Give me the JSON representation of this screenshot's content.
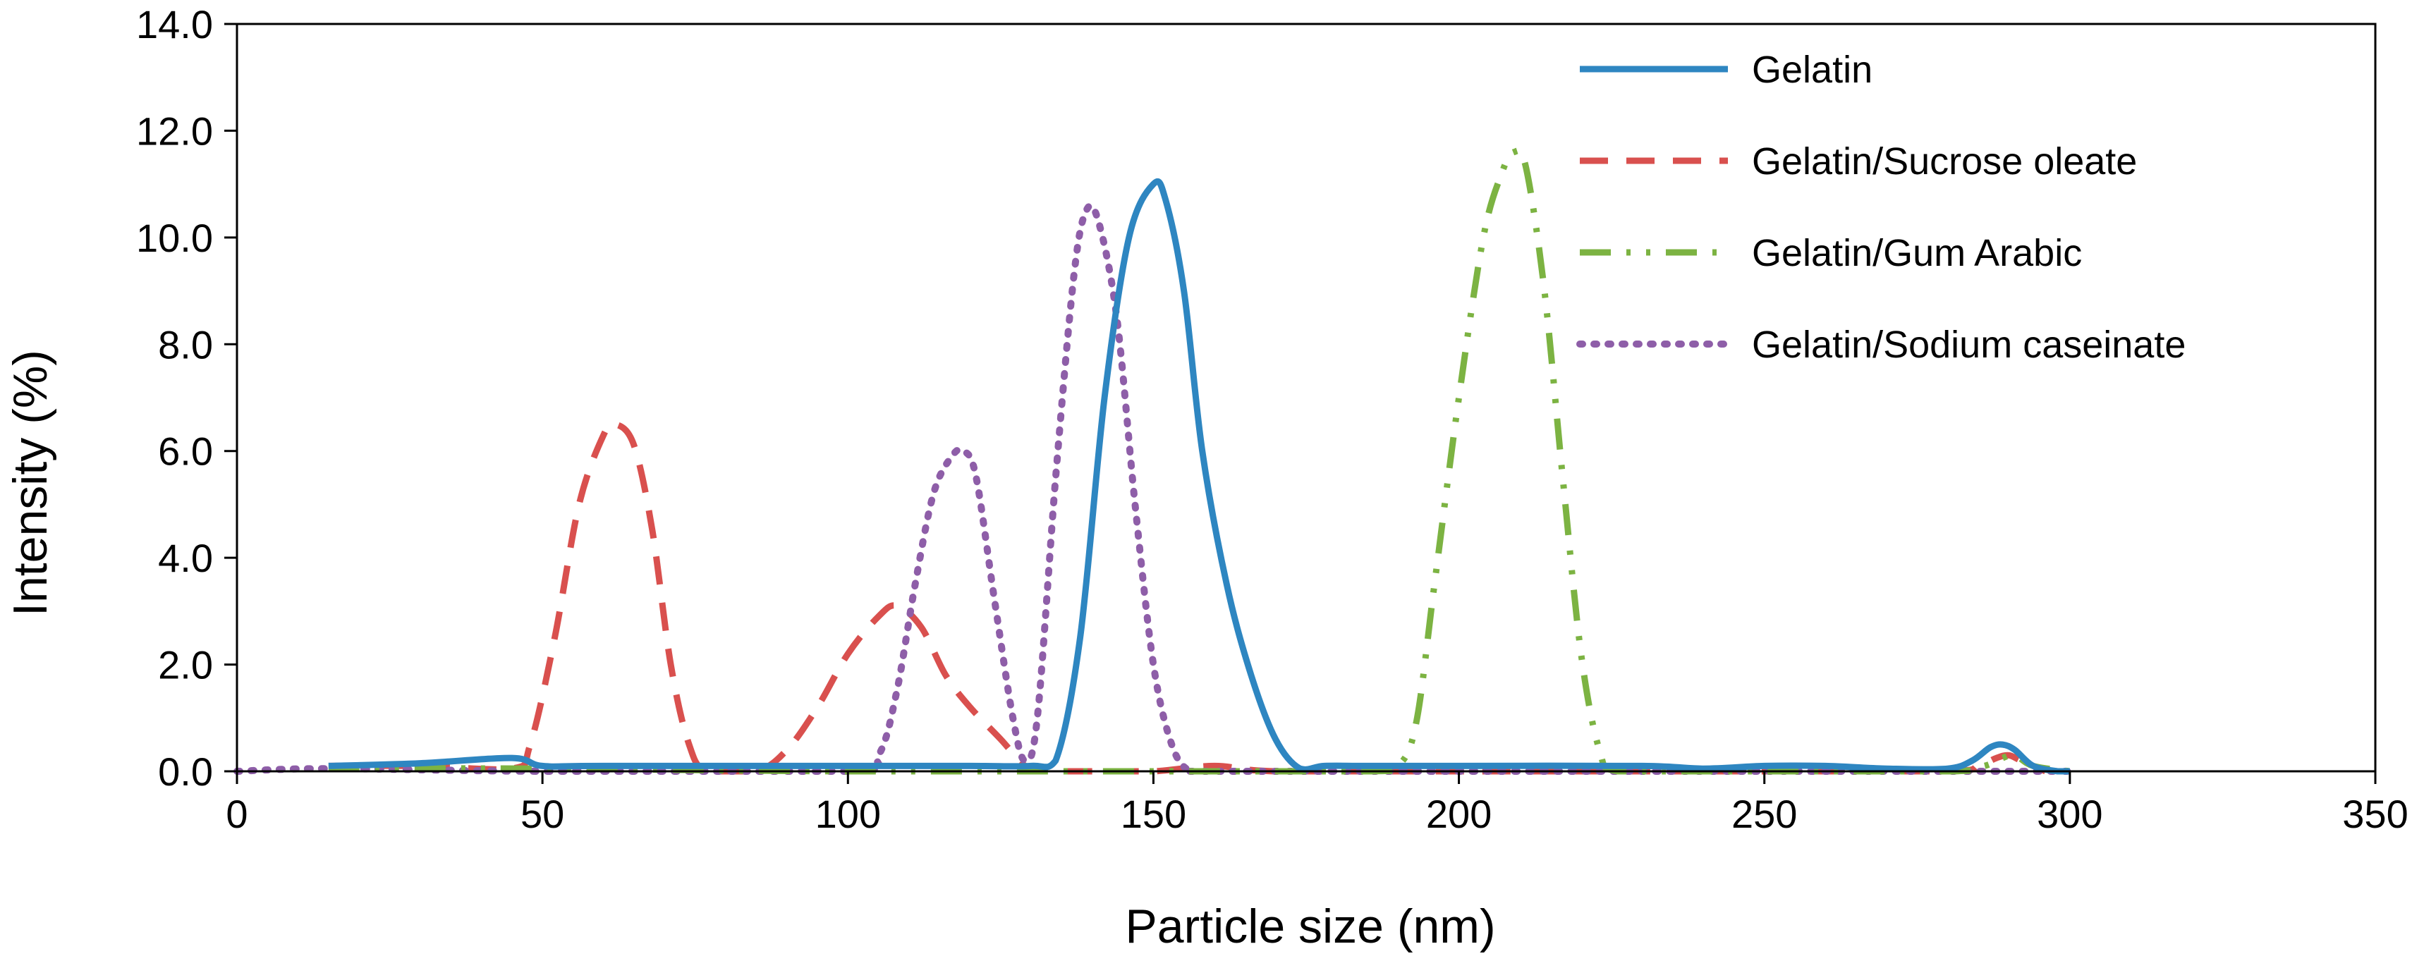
{
  "chart_data": {
    "type": "line",
    "title": "",
    "xlabel": "Particle size (nm)",
    "ylabel": "Intensity (%)",
    "xlim": [
      0,
      350
    ],
    "ylim": [
      0,
      14
    ],
    "x_ticks": [
      0,
      50,
      100,
      150,
      200,
      250,
      300,
      350
    ],
    "x_tick_labels": [
      "0",
      "50",
      "100",
      "150",
      "200",
      "250",
      "300",
      "350"
    ],
    "y_ticks": [
      0,
      2,
      4,
      6,
      8,
      10,
      12,
      14
    ],
    "y_tick_labels": [
      "0.0",
      "2.0",
      "4.0",
      "6.0",
      "8.0",
      "10.0",
      "12.0",
      "14.0"
    ],
    "grid": false,
    "legend_position": "top-right",
    "series": [
      {
        "name": "Gelatin",
        "color": "#2E86C1",
        "style": "solid",
        "x": [
          15,
          30,
          45,
          50,
          60,
          100,
          120,
          130,
          134,
          138,
          142,
          146,
          150,
          152,
          155,
          158,
          162,
          166,
          170,
          174,
          178,
          185,
          200,
          230,
          240,
          250,
          260,
          270,
          280,
          284,
          287,
          289,
          291,
          294,
          298,
          300
        ],
        "y": [
          0.1,
          0.15,
          0.25,
          0.1,
          0.1,
          0.1,
          0.1,
          0.1,
          0.2,
          2.5,
          7.0,
          10.0,
          11.0,
          10.7,
          9.0,
          6.0,
          3.5,
          1.8,
          0.6,
          0.05,
          0.1,
          0.1,
          0.1,
          0.1,
          0.05,
          0.1,
          0.1,
          0.05,
          0.05,
          0.2,
          0.45,
          0.5,
          0.4,
          0.1,
          0.0,
          0.0
        ]
      },
      {
        "name": "Gelatin/Sucrose oleate",
        "color": "#D9504E",
        "style": "dashed",
        "x": [
          15,
          30,
          45,
          48,
          52,
          56,
          60,
          62,
          65,
          68,
          71,
          74,
          77,
          85,
          90,
          95,
          100,
          105,
          108,
          112,
          116,
          120,
          125,
          129,
          132,
          140,
          150,
          160,
          170,
          200,
          250,
          280,
          285,
          288,
          290,
          292,
          296
        ],
        "y": [
          0.1,
          0.1,
          0.05,
          0.5,
          2.5,
          5.0,
          6.3,
          6.5,
          6.1,
          4.5,
          2.0,
          0.5,
          0.0,
          0.0,
          0.4,
          1.2,
          2.2,
          2.9,
          3.1,
          2.7,
          1.8,
          1.2,
          0.6,
          0.1,
          0.0,
          0.0,
          0.0,
          0.1,
          0.0,
          0.0,
          0.0,
          0.0,
          0.1,
          0.25,
          0.3,
          0.2,
          0.0
        ]
      },
      {
        "name": "Gelatin/Gum Arabic",
        "color": "#7CB342",
        "style": "dash-dot-dot",
        "x": [
          15,
          50,
          100,
          150,
          185,
          190,
          193,
          196,
          200,
          204,
          207,
          209,
          211,
          214,
          217,
          220,
          223,
          226,
          240,
          280,
          286,
          289,
          291,
          294,
          300
        ],
        "y": [
          0.05,
          0.05,
          0.0,
          0.0,
          0.0,
          0.1,
          0.9,
          3.5,
          7.0,
          10.0,
          11.2,
          11.6,
          11.3,
          9.0,
          5.5,
          2.2,
          0.4,
          0.0,
          0.0,
          0.0,
          0.1,
          0.25,
          0.3,
          0.1,
          0.0
        ]
      },
      {
        "name": "Gelatin/Sodium caseinate",
        "color": "#8E5EA8",
        "style": "dotted",
        "x": [
          0,
          15,
          50,
          100,
          105,
          108,
          111,
          114,
          117,
          119,
          121,
          124,
          127,
          129,
          131,
          134,
          137,
          139,
          141,
          144,
          147,
          150,
          153,
          156,
          160,
          200,
          250,
          300
        ],
        "y": [
          0.0,
          0.05,
          0.0,
          0.0,
          0.3,
          1.5,
          3.5,
          5.2,
          5.9,
          6.0,
          5.5,
          3.2,
          1.0,
          0.2,
          1.0,
          5.5,
          9.3,
          10.5,
          10.3,
          8.5,
          5.0,
          2.0,
          0.5,
          0.0,
          0.0,
          0.0,
          0.0,
          0.0
        ]
      }
    ]
  }
}
